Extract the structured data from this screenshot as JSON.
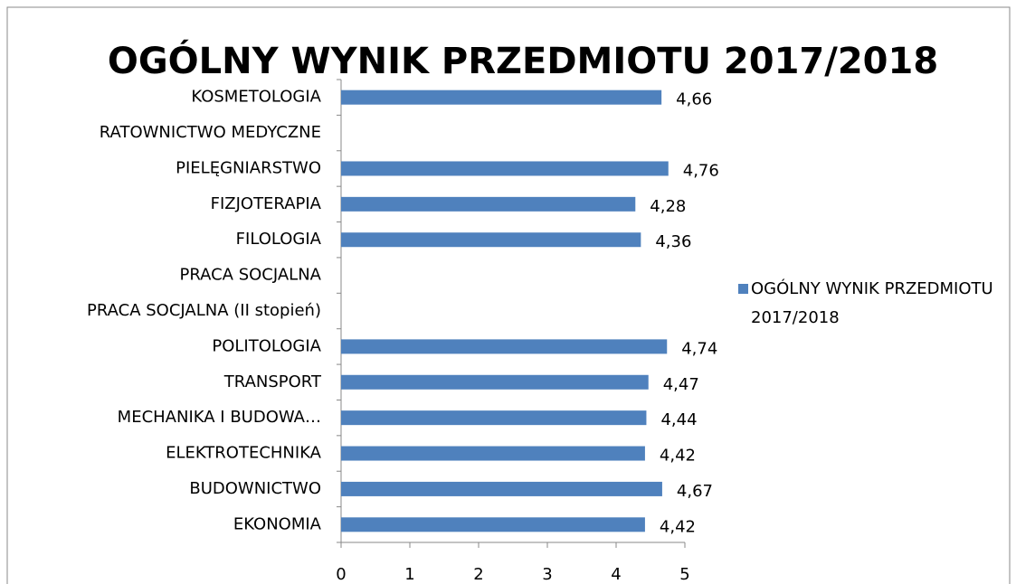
{
  "chart_data": {
    "type": "bar",
    "orientation": "horizontal",
    "title": "OGÓLNY WYNIK PRZEDMIOTU 2017/2018",
    "categories": [
      "KOSMETOLOGIA",
      "RATOWNICTWO MEDYCZNE",
      "PIELĘGNIARSTWO",
      "FIZJOTERAPIA",
      "FILOLOGIA",
      "PRACA SOCJALNA",
      "PRACA SOCJALNA (II stopień)",
      "POLITOLOGIA",
      "TRANSPORT",
      "MECHANIKA I BUDOWA…",
      "ELEKTROTECHNIKA",
      "BUDOWNICTWO",
      "EKONOMIA"
    ],
    "series": [
      {
        "name": "OGÓLNY WYNIK PRZEDMIOTU 2017/2018",
        "color": "#4f81bd",
        "values": [
          4.66,
          null,
          4.76,
          4.28,
          4.36,
          null,
          null,
          4.74,
          4.47,
          4.44,
          4.42,
          4.67,
          4.42
        ],
        "value_labels": [
          "4,66",
          null,
          "4,76",
          "4,28",
          "4,36",
          null,
          null,
          "4,74",
          "4,47",
          "4,44",
          "4,42",
          "4,67",
          "4,42"
        ]
      }
    ],
    "xlim": [
      0,
      5
    ],
    "xticks": [
      0,
      1,
      2,
      3,
      4,
      5
    ],
    "legend": "right"
  }
}
